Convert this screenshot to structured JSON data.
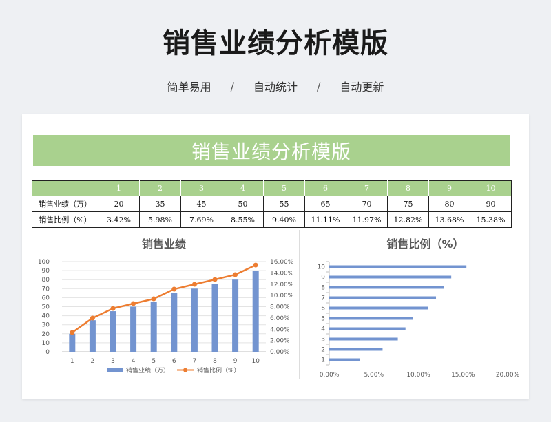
{
  "header": {
    "title": "销售业绩分析模版",
    "subtitle_items": [
      "简单易用",
      "自动统计",
      "自动更新"
    ],
    "separator": "/"
  },
  "banner": {
    "title": "销售业绩分析模版"
  },
  "table": {
    "columns": [
      "1",
      "2",
      "3",
      "4",
      "5",
      "6",
      "7",
      "8",
      "9",
      "10"
    ],
    "rows": [
      {
        "label": "销售业绩（万）",
        "values": [
          "20",
          "35",
          "45",
          "50",
          "55",
          "65",
          "70",
          "75",
          "80",
          "90"
        ]
      },
      {
        "label": "销售比例（%）",
        "values": [
          "3.42%",
          "5.98%",
          "7.69%",
          "8.55%",
          "9.40%",
          "11.11%",
          "11.97%",
          "12.82%",
          "13.68%",
          "15.38%"
        ]
      }
    ]
  },
  "colors": {
    "accent_green": "#a9d18e",
    "bar_blue": "#7394d0",
    "line_orange": "#ed7d31"
  },
  "chart_data": [
    {
      "type": "bar",
      "title": "销售业绩",
      "categories": [
        "1",
        "2",
        "3",
        "4",
        "5",
        "6",
        "7",
        "8",
        "9",
        "10"
      ],
      "series": [
        {
          "name": "销售业绩（万）",
          "type": "bar",
          "axis": "left",
          "values": [
            20,
            35,
            45,
            50,
            55,
            65,
            70,
            75,
            80,
            90
          ]
        },
        {
          "name": "销售比例（%）",
          "type": "line",
          "axis": "right",
          "values": [
            0.0342,
            0.0598,
            0.0769,
            0.0855,
            0.094,
            0.1111,
            0.1197,
            0.1282,
            0.1368,
            0.1538
          ]
        }
      ],
      "ylim": [
        0,
        100
      ],
      "y_ticks": [
        "0",
        "10",
        "20",
        "30",
        "40",
        "50",
        "60",
        "70",
        "80",
        "90",
        "100"
      ],
      "y2lim": [
        0,
        0.16
      ],
      "y2_ticks": [
        "0.00%",
        "2.00%",
        "4.00%",
        "6.00%",
        "8.00%",
        "10.00%",
        "12.00%",
        "14.00%",
        "16.00%"
      ],
      "legend": "bottom",
      "legend_labels": [
        "销售业绩（万）",
        "销售比例（%）"
      ],
      "grid": true
    },
    {
      "type": "bar",
      "orientation": "horizontal",
      "title": "销售比例（%）",
      "categories": [
        "1",
        "2",
        "3",
        "4",
        "5",
        "6",
        "7",
        "8",
        "9",
        "10"
      ],
      "values": [
        0.0342,
        0.0598,
        0.0769,
        0.0855,
        0.094,
        0.1111,
        0.1197,
        0.1282,
        0.1368,
        0.1538
      ],
      "xlim": [
        0,
        0.2
      ],
      "x_ticks": [
        "0.00%",
        "5.00%",
        "10.00%",
        "15.00%",
        "20.00%"
      ],
      "grid": false
    }
  ]
}
